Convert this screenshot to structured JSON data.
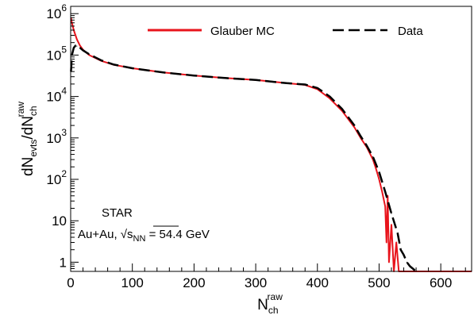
{
  "chart_data": {
    "type": "line",
    "title": "",
    "xlabel": {
      "base": "N",
      "sub": "ch",
      "sup": "raw"
    },
    "ylabel": {
      "d1": "dN",
      "sub1": "evts",
      "slash": "/",
      "d2": "dN",
      "sub2": "ch",
      "sup2": "raw"
    },
    "xlim": [
      0,
      650
    ],
    "ylim": [
      0.6,
      1500000
    ],
    "yscale": "log",
    "x_ticks": [
      0,
      100,
      200,
      300,
      400,
      500,
      600
    ],
    "y_ticks": [
      {
        "value": 1,
        "base": "1",
        "exp": ""
      },
      {
        "value": 10,
        "base": "10",
        "exp": ""
      },
      {
        "value": 100,
        "base": "10",
        "exp": "2"
      },
      {
        "value": 1000,
        "base": "10",
        "exp": "3"
      },
      {
        "value": 10000,
        "base": "10",
        "exp": "4"
      },
      {
        "value": 100000,
        "base": "10",
        "exp": "5"
      },
      {
        "value": 1000000,
        "base": "10",
        "exp": "6"
      }
    ],
    "legend_position": "top",
    "series": [
      {
        "name": "Glauber MC",
        "color": "#e8141c",
        "style": "solid",
        "points": [
          [
            0.5,
            800000
          ],
          [
            2,
            600000
          ],
          [
            5,
            400000
          ],
          [
            10,
            240000
          ],
          [
            15,
            170000
          ],
          [
            20,
            135000
          ],
          [
            30,
            100000
          ],
          [
            40,
            85000
          ],
          [
            50,
            72000
          ],
          [
            70,
            58000
          ],
          [
            100,
            48000
          ],
          [
            150,
            38000
          ],
          [
            200,
            32000
          ],
          [
            250,
            28000
          ],
          [
            300,
            25000
          ],
          [
            350,
            21000
          ],
          [
            380,
            19000
          ],
          [
            400,
            15000
          ],
          [
            420,
            9000
          ],
          [
            440,
            4500
          ],
          [
            460,
            1800
          ],
          [
            470,
            1000
          ],
          [
            480,
            600
          ],
          [
            490,
            300
          ],
          [
            495,
            180
          ],
          [
            500,
            100
          ],
          [
            505,
            50
          ],
          [
            510,
            22
          ],
          [
            512,
            3
          ],
          [
            514,
            40
          ],
          [
            516,
            1
          ],
          [
            520,
            8
          ],
          [
            524,
            0.6
          ],
          [
            528,
            3
          ],
          [
            532,
            0.6
          ],
          [
            540,
            0.6
          ],
          [
            560,
            0.6
          ],
          [
            650,
            0.6
          ]
        ]
      },
      {
        "name": "Data",
        "color": "#000000",
        "style": "dashed",
        "points": [
          [
            0.5,
            40000
          ],
          [
            2,
            100000
          ],
          [
            5,
            150000
          ],
          [
            8,
            170000
          ],
          [
            10,
            165000
          ],
          [
            15,
            150000
          ],
          [
            20,
            130000
          ],
          [
            30,
            105000
          ],
          [
            40,
            88000
          ],
          [
            50,
            74000
          ],
          [
            70,
            59000
          ],
          [
            100,
            48000
          ],
          [
            150,
            38000
          ],
          [
            200,
            32000
          ],
          [
            250,
            28000
          ],
          [
            300,
            25000
          ],
          [
            350,
            21000
          ],
          [
            380,
            19500
          ],
          [
            400,
            16000
          ],
          [
            420,
            10000
          ],
          [
            440,
            5000
          ],
          [
            460,
            2000
          ],
          [
            470,
            1100
          ],
          [
            480,
            650
          ],
          [
            490,
            350
          ],
          [
            500,
            150
          ],
          [
            510,
            50
          ],
          [
            520,
            15
          ],
          [
            530,
            5
          ],
          [
            535,
            2
          ],
          [
            540,
            1.5
          ],
          [
            545,
            1
          ],
          [
            550,
            0.8
          ],
          [
            560,
            0.6
          ]
        ]
      }
    ],
    "annotations": {
      "experiment": "STAR",
      "system_prefix": "Au+Au, ",
      "sqrt_symbol": "√",
      "s_text": "s",
      "s_sub": "NN",
      "energy": " = 54.4 GeV"
    }
  }
}
